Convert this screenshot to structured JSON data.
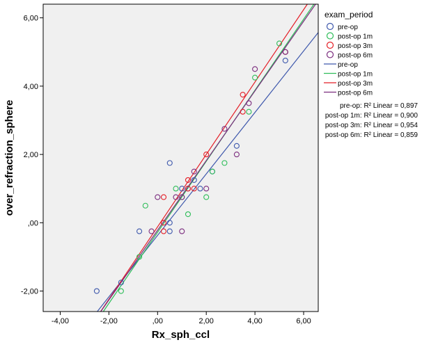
{
  "chart_data": {
    "type": "scatter",
    "xlabel": "Rx_sph_ccl",
    "ylabel": "over_refraction_sphere",
    "xlim": [
      -4.7,
      6.6
    ],
    "ylim": [
      -2.6,
      6.4
    ],
    "xticks": [
      -4,
      -2,
      0,
      2,
      4,
      6
    ],
    "xtick_labels": [
      "-4,00",
      "-2,00",
      ",00",
      "2,00",
      "4,00",
      "6,00"
    ],
    "yticks": [
      -2,
      0,
      2,
      4,
      6
    ],
    "ytick_labels": [
      "-2,00",
      ",00",
      "2,00",
      "4,00",
      "6,00"
    ],
    "grid": false,
    "background": "#f0f0f0",
    "legend": {
      "title": "exam_period",
      "position": "right",
      "marker_labels": [
        "pre-op",
        "post-op 1m",
        "post-op 3m",
        "post-op 6m"
      ],
      "line_labels": [
        "pre-op",
        "post-op 1m",
        "post-op 3m",
        "post-op 6m"
      ],
      "r2_lines": [
        "pre-op: R² Linear = 0,897",
        "post-op 1m: R² Linear = 0,900",
        "post-op 3m: R² Linear = 0,954",
        "post-op 6m: R² Linear = 0,859"
      ]
    },
    "series": [
      {
        "name": "pre-op",
        "color": "#3e58ac",
        "points": [
          [
            -2.5,
            -2.0
          ],
          [
            -1.5,
            -1.75
          ],
          [
            -0.75,
            -0.25
          ],
          [
            0.5,
            -0.25
          ],
          [
            0.5,
            0.0
          ],
          [
            0.5,
            1.75
          ],
          [
            1.0,
            1.0
          ],
          [
            1.25,
            1.0
          ],
          [
            1.5,
            1.25
          ],
          [
            1.75,
            1.0
          ],
          [
            2.25,
            1.5
          ],
          [
            3.25,
            2.25
          ],
          [
            5.25,
            4.75
          ],
          [
            5.25,
            5.0
          ]
        ],
        "fit": {
          "slope": 0.9,
          "intercept": -0.37
        }
      },
      {
        "name": "post-op 1m",
        "color": "#2ebd59",
        "points": [
          [
            -1.5,
            -2.0
          ],
          [
            -0.75,
            -1.0
          ],
          [
            -0.5,
            0.5
          ],
          [
            0.75,
            1.0
          ],
          [
            1.0,
            0.75
          ],
          [
            1.25,
            0.25
          ],
          [
            2.0,
            0.75
          ],
          [
            2.25,
            1.5
          ],
          [
            2.75,
            1.75
          ],
          [
            3.75,
            3.25
          ],
          [
            4.0,
            4.25
          ],
          [
            5.0,
            5.25
          ]
        ],
        "fit": {
          "slope": 1.04,
          "intercept": -0.28
        }
      },
      {
        "name": "post-op 3m",
        "color": "#e41e26",
        "points": [
          [
            0.25,
            -0.25
          ],
          [
            0.25,
            0.0
          ],
          [
            0.25,
            0.75
          ],
          [
            1.25,
            1.0
          ],
          [
            1.25,
            1.25
          ],
          [
            1.5,
            1.0
          ],
          [
            2.0,
            2.0
          ],
          [
            3.5,
            3.25
          ],
          [
            3.5,
            3.75
          ],
          [
            5.25,
            5.0
          ]
        ],
        "fit": {
          "slope": 1.06,
          "intercept": -0.12
        }
      },
      {
        "name": "post-op 6m",
        "color": "#7b2c7e",
        "points": [
          [
            -0.25,
            -0.25
          ],
          [
            0.0,
            0.75
          ],
          [
            0.75,
            0.75
          ],
          [
            1.0,
            -0.25
          ],
          [
            1.0,
            0.75
          ],
          [
            1.5,
            1.5
          ],
          [
            2.0,
            1.0
          ],
          [
            2.75,
            2.75
          ],
          [
            3.25,
            2.0
          ],
          [
            3.75,
            3.5
          ],
          [
            4.0,
            4.5
          ],
          [
            5.25,
            5.0
          ]
        ],
        "fit": {
          "slope": 1.02,
          "intercept": -0.22
        }
      }
    ]
  }
}
